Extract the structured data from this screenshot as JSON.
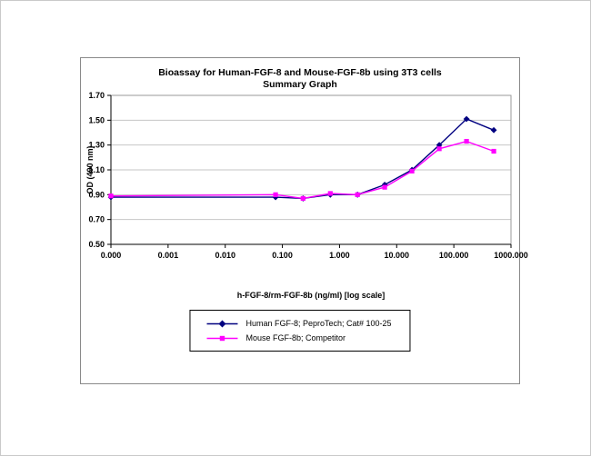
{
  "chart_data": {
    "type": "line",
    "title": "Bioassay for Human-FGF-8 and Mouse-FGF-8b using 3T3 cells",
    "subtitle": "Summary Graph",
    "xlabel": "h-FGF-8/rm-FGF-8b (ng/ml) [log scale]",
    "ylabel": "OD (490 nm)",
    "x_scale": "log",
    "grid": true,
    "legend_position": "bottom",
    "ylim": [
      0.5,
      1.7
    ],
    "y_ticks": [
      "0.50",
      "0.70",
      "0.90",
      "1.10",
      "1.30",
      "1.50",
      "1.70"
    ],
    "x_ticks": [
      "0.000",
      "0.001",
      "0.010",
      "0.100",
      "1.000",
      "10.000",
      "100.000",
      "1000.000"
    ],
    "x_tick_values": [
      0.0001,
      0.001,
      0.01,
      0.1,
      1,
      10,
      100,
      1000
    ],
    "x": [
      0.0001,
      0.076,
      0.23,
      0.69,
      2.06,
      6.17,
      18.5,
      55.6,
      166.7,
      500
    ],
    "series": [
      {
        "name": "Human FGF-8; PeproTech; Cat# 100-25",
        "color": "#000080",
        "marker": "diamond",
        "values": [
          0.88,
          0.88,
          0.87,
          0.9,
          0.9,
          0.98,
          1.1,
          1.3,
          1.51,
          1.42
        ]
      },
      {
        "name": "Mouse FGF-8b; Competitor",
        "color": "#FF00FF",
        "marker": "square",
        "values": [
          0.89,
          0.9,
          0.87,
          0.91,
          0.9,
          0.96,
          1.09,
          1.27,
          1.33,
          1.25
        ]
      }
    ],
    "grid_color": "#C6C6C6",
    "axis_color": "#000000"
  }
}
